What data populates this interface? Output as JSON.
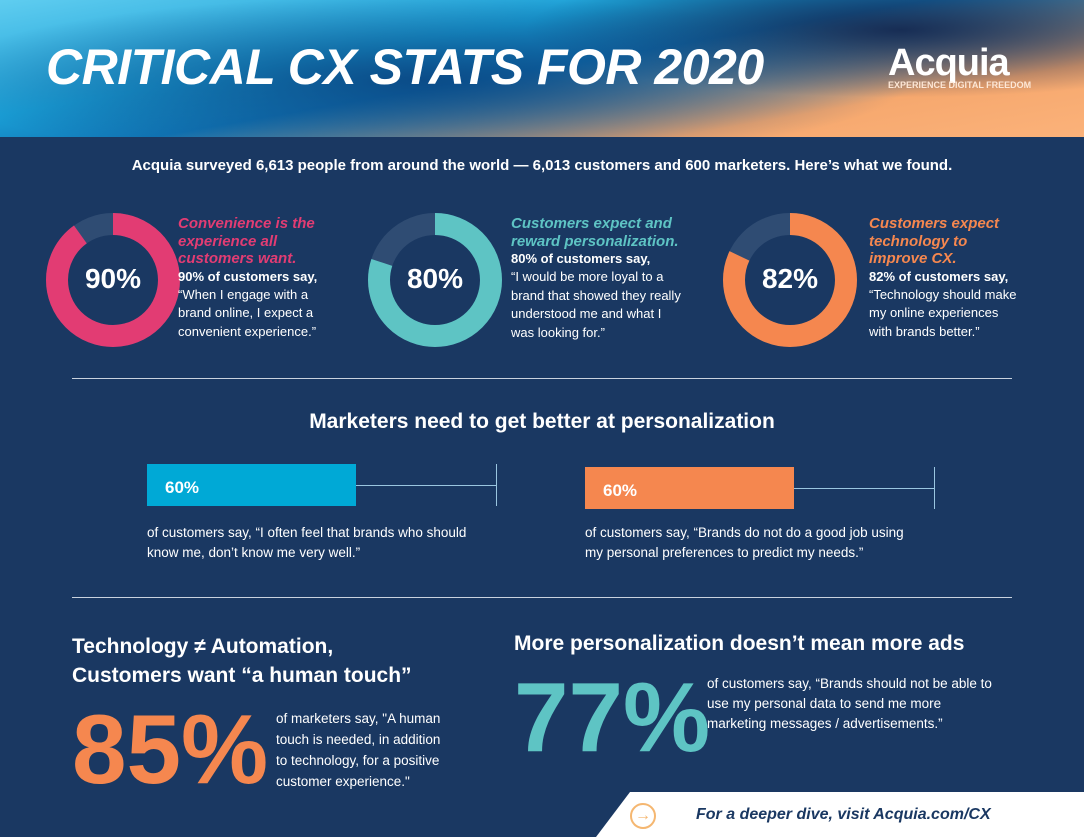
{
  "header": {
    "title": "CRITICAL CX STATS FOR 2020",
    "logo": "Acquia",
    "tagline": "EXPERIENCE DIGITAL FREEDOM"
  },
  "intro": "Acquia surveyed 6,613 people from around the world — 6,013 customers and 600 marketers. Here’s what we found.",
  "colors": {
    "background": "#1a3862",
    "pink": "#e23c73",
    "teal": "#5ec4c4",
    "orange": "#f5874f",
    "cyan": "#00a9d6",
    "remainder": "#2f4c73"
  },
  "stats": [
    {
      "value": 90,
      "label": "90%",
      "color": "#e23c73",
      "heading": [
        "Convenience is the",
        "experience all",
        "customers want."
      ],
      "sub": "90% of customers say,",
      "quote": [
        "“When I engage with a",
        "brand online, I expect a",
        "convenient experience.”"
      ]
    },
    {
      "value": 80,
      "label": "80%",
      "color": "#5ec4c4",
      "heading": [
        "Customers expect and",
        "reward personalization."
      ],
      "sub": "80% of customers say,",
      "quote": [
        "“I would be more loyal to a",
        "brand that showed they really",
        "understood me and what I",
        "was looking for.”"
      ]
    },
    {
      "value": 82,
      "label": "82%",
      "color": "#f5874f",
      "heading": [
        "Customers expect",
        "technology to",
        "improve CX."
      ],
      "sub": "82% of customers say,",
      "quote": [
        "“Technology should make",
        "my online experiences",
        "with brands better.”"
      ]
    }
  ],
  "marketers": {
    "title": "Marketers need to get better at personalization",
    "bars": [
      {
        "value": 60,
        "label": "60%",
        "color": "#00a9d6",
        "text": [
          "of customers say, “I often feel that brands who should",
          "know me, don’t know me very well.”"
        ]
      },
      {
        "value": 60,
        "label": "60%",
        "color": "#f5874f",
        "text": [
          "of customers say, “Brands do not do a good job using",
          "my personal preferences to predict my needs.”"
        ]
      }
    ]
  },
  "tech": {
    "title": [
      "Technology ≠ Automation,",
      "Customers want “a human touch”"
    ],
    "value": "85%",
    "text": [
      "of marketers say, \"A human",
      "touch is needed, in addition",
      "to technology, for a positive",
      "customer experience.\""
    ]
  },
  "ads": {
    "title": "More personalization doesn’t mean more ads",
    "value": "77%",
    "text": [
      "of customers say, “Brands should not be able to",
      "use my personal data to send me more",
      "marketing messages / advertisements.”"
    ]
  },
  "cta": {
    "icon": "arrow-right-circle-icon",
    "text": "For a deeper dive, visit Acquia.com/CX"
  }
}
